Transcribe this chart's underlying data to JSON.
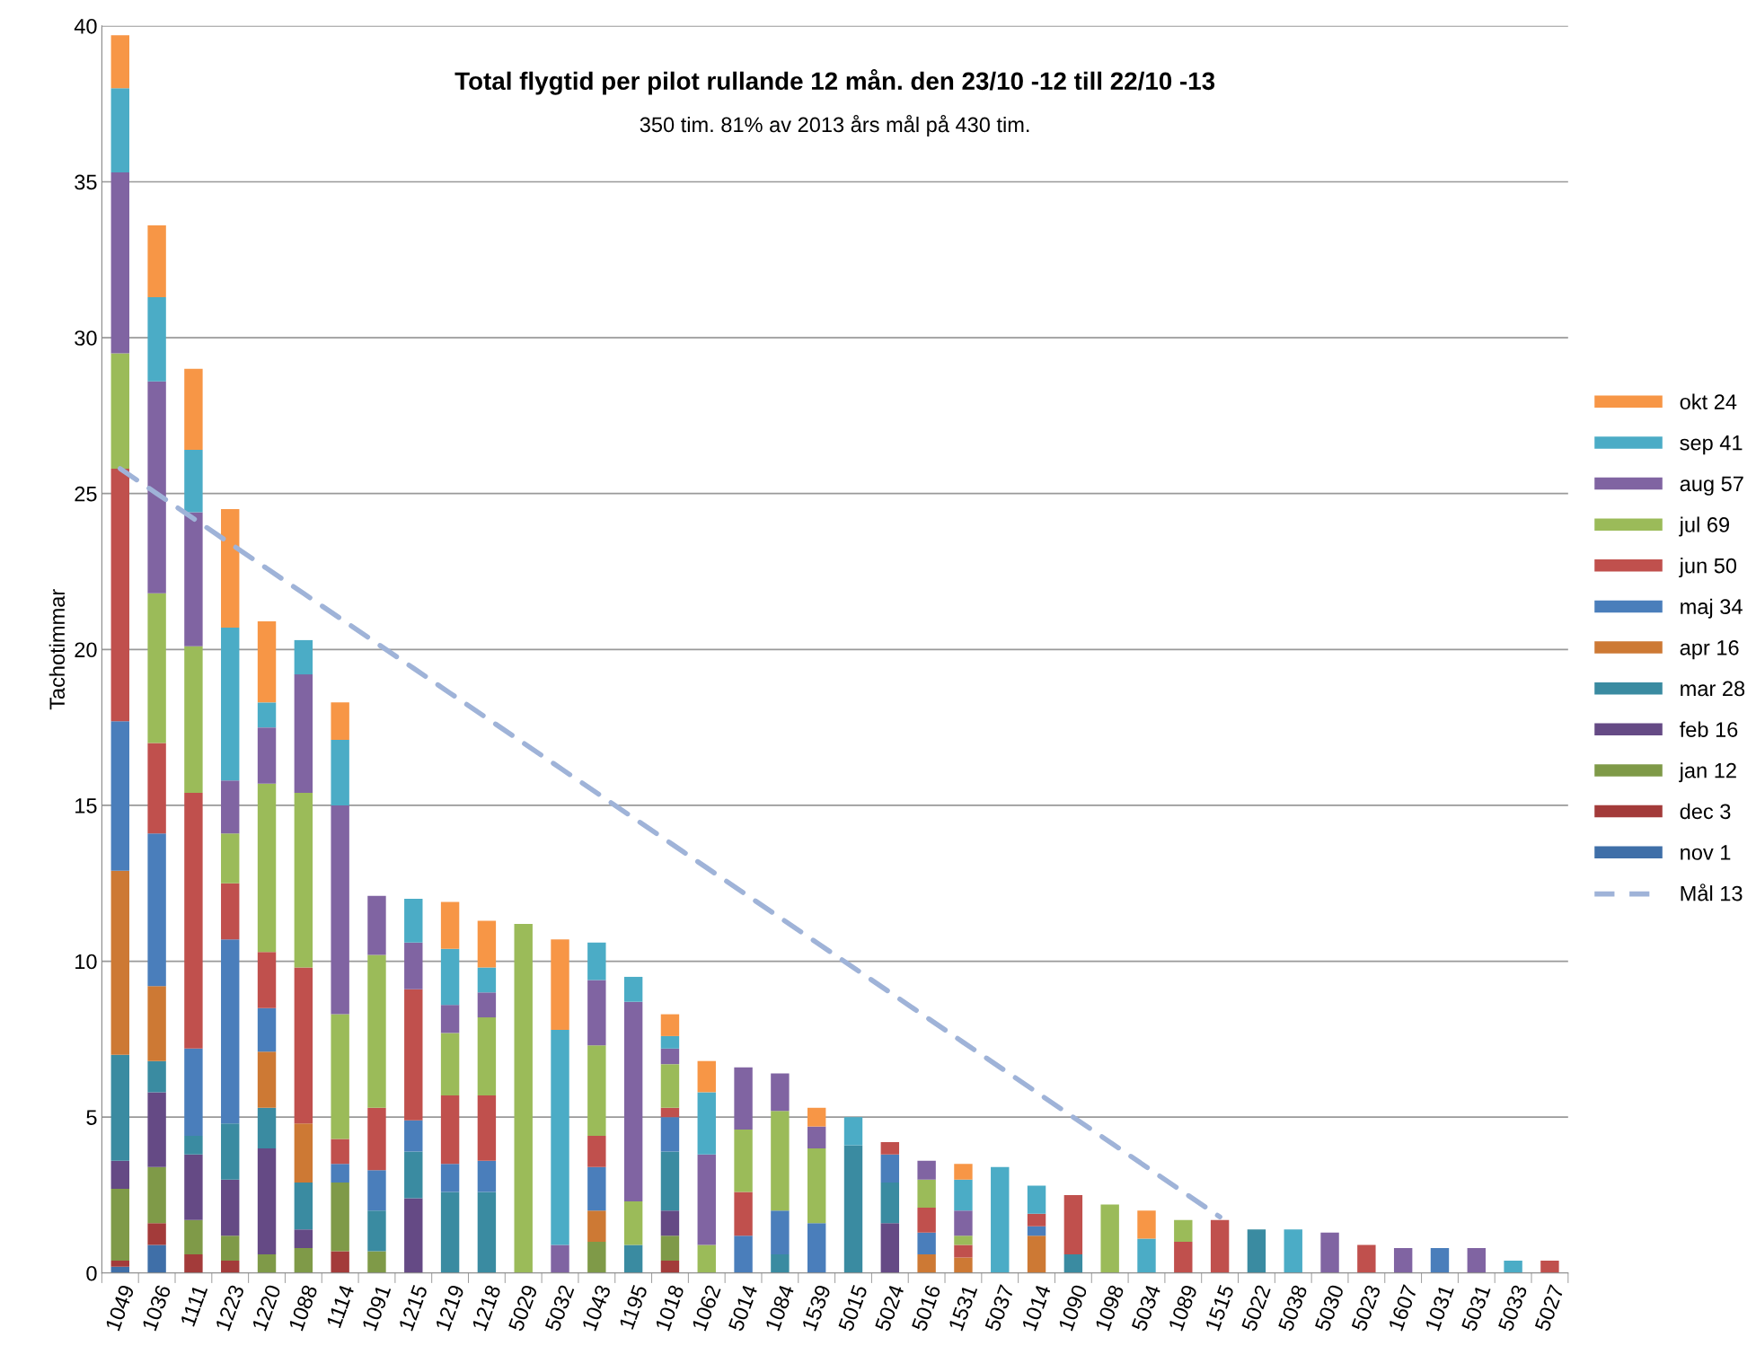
{
  "chart_data": {
    "type": "bar",
    "stacked": true,
    "title": "Total flygtid per pilot rullande 12 mån. den 23/10 -12 till 22/10 -13",
    "subtitle": "350 tim. 81% av 2013 års mål på 430 tim.",
    "ylabel": "Tachotimmar",
    "categories": [
      "1049",
      "1036",
      "1111",
      "1223",
      "1220",
      "1088",
      "1114",
      "1091",
      "1215",
      "1219",
      "1218",
      "5029",
      "5032",
      "1043",
      "1195",
      "1018",
      "1062",
      "5014",
      "1084",
      "1539",
      "5015",
      "5024",
      "5016",
      "1531",
      "5037",
      "1014",
      "1090",
      "1098",
      "5034",
      "1089",
      "1515",
      "5022",
      "5038",
      "5030",
      "5023",
      "1607",
      "1031",
      "5031",
      "5033",
      "5027"
    ],
    "ylim": [
      0,
      40
    ],
    "yticks": [
      0,
      5,
      10,
      15,
      20,
      25,
      30,
      35,
      40
    ],
    "grid": "y",
    "legend": "right",
    "series": [
      {
        "name": "nov 1",
        "color": "#3f6fa8",
        "values": [
          0.2,
          0.9,
          null,
          null,
          null,
          null,
          null,
          null,
          null,
          null,
          null,
          null,
          null,
          null,
          null,
          null,
          null,
          null,
          null,
          null,
          null,
          null,
          null,
          null,
          null,
          null,
          null,
          null,
          null,
          null,
          null,
          null,
          null,
          null,
          null,
          null,
          null,
          null,
          null,
          null
        ]
      },
      {
        "name": "dec 3",
        "color": "#a33b3a",
        "values": [
          0.2,
          0.7,
          0.6,
          0.4,
          null,
          null,
          0.7,
          null,
          null,
          null,
          null,
          null,
          null,
          null,
          null,
          0.4,
          null,
          null,
          null,
          null,
          null,
          null,
          null,
          null,
          null,
          null,
          null,
          null,
          null,
          null,
          null,
          null,
          null,
          null,
          null,
          null,
          null,
          null,
          null,
          null
        ]
      },
      {
        "name": "jan 12",
        "color": "#7f9a48",
        "values": [
          2.3,
          1.8,
          1.1,
          0.8,
          0.6,
          0.8,
          2.2,
          0.7,
          null,
          null,
          null,
          null,
          null,
          1.0,
          null,
          0.8,
          null,
          null,
          null,
          null,
          null,
          null,
          null,
          null,
          null,
          null,
          null,
          null,
          null,
          null,
          null,
          null,
          null,
          null,
          null,
          null,
          null,
          null,
          null,
          null
        ]
      },
      {
        "name": "feb 16",
        "color": "#654a85",
        "values": [
          0.9,
          2.4,
          2.1,
          1.8,
          3.4,
          0.6,
          null,
          null,
          2.4,
          null,
          null,
          null,
          null,
          null,
          null,
          0.8,
          null,
          null,
          null,
          null,
          null,
          1.6,
          null,
          null,
          null,
          null,
          null,
          null,
          null,
          null,
          null,
          null,
          null,
          null,
          null,
          null,
          null,
          null,
          null,
          null
        ]
      },
      {
        "name": "mar 28",
        "color": "#3a8ba1",
        "values": [
          3.4,
          1.0,
          0.6,
          1.8,
          1.3,
          1.5,
          null,
          1.3,
          1.5,
          2.6,
          2.6,
          null,
          null,
          null,
          0.9,
          1.9,
          null,
          null,
          0.6,
          null,
          4.1,
          1.3,
          null,
          null,
          null,
          null,
          0.6,
          null,
          null,
          null,
          null,
          1.4,
          null,
          null,
          null,
          null,
          null,
          null,
          null,
          null
        ]
      },
      {
        "name": "apr 16",
        "color": "#cd7934",
        "values": [
          5.9,
          2.4,
          null,
          null,
          1.8,
          1.9,
          null,
          null,
          null,
          null,
          null,
          null,
          null,
          1.0,
          null,
          null,
          null,
          null,
          null,
          null,
          null,
          null,
          0.6,
          0.5,
          null,
          1.2,
          null,
          null,
          null,
          null,
          null,
          null,
          null,
          null,
          null,
          null,
          null,
          null,
          null,
          null
        ]
      },
      {
        "name": "maj 34",
        "color": "#4a7ebb",
        "values": [
          4.8,
          4.9,
          2.8,
          5.9,
          1.4,
          null,
          0.6,
          1.3,
          1.0,
          0.9,
          1.0,
          null,
          null,
          1.4,
          null,
          1.1,
          null,
          1.2,
          1.4,
          1.6,
          null,
          0.9,
          0.7,
          null,
          null,
          0.3,
          null,
          null,
          null,
          null,
          null,
          null,
          null,
          null,
          null,
          null,
          0.8,
          null,
          null,
          null
        ]
      },
      {
        "name": "jun 50",
        "color": "#c0504d",
        "values": [
          8.1,
          2.9,
          8.2,
          1.8,
          1.8,
          5.0,
          0.8,
          2.0,
          4.2,
          2.2,
          2.1,
          null,
          null,
          1.0,
          null,
          0.3,
          null,
          1.4,
          null,
          null,
          null,
          0.4,
          0.8,
          0.4,
          null,
          0.4,
          1.9,
          null,
          null,
          1.0,
          1.7,
          null,
          null,
          null,
          0.9,
          null,
          null,
          null,
          null,
          0.4
        ]
      },
      {
        "name": "jul 69",
        "color": "#9bbb59",
        "values": [
          3.7,
          4.8,
          4.7,
          1.6,
          5.4,
          5.6,
          4.0,
          4.9,
          null,
          2.0,
          2.5,
          11.2,
          null,
          2.9,
          1.4,
          1.4,
          0.9,
          2.0,
          3.2,
          2.4,
          null,
          null,
          0.9,
          0.3,
          null,
          null,
          null,
          2.2,
          null,
          0.7,
          null,
          null,
          null,
          null,
          null,
          null,
          null,
          null,
          null,
          null
        ]
      },
      {
        "name": "aug 57",
        "color": "#8064a2",
        "values": [
          5.8,
          6.8,
          4.3,
          1.7,
          1.8,
          3.8,
          6.7,
          1.9,
          1.5,
          0.9,
          0.8,
          null,
          0.9,
          2.1,
          6.4,
          0.5,
          2.9,
          2.0,
          1.2,
          0.7,
          null,
          null,
          0.6,
          0.8,
          null,
          null,
          null,
          null,
          null,
          null,
          null,
          null,
          null,
          1.3,
          null,
          0.8,
          null,
          0.8,
          null,
          null
        ]
      },
      {
        "name": "sep 41",
        "color": "#4bacc6",
        "values": [
          2.7,
          2.7,
          2.0,
          4.9,
          0.8,
          1.1,
          2.1,
          null,
          1.4,
          1.8,
          0.8,
          null,
          6.9,
          1.2,
          0.8,
          0.4,
          2.0,
          null,
          null,
          null,
          0.9,
          null,
          null,
          1.0,
          3.4,
          0.9,
          null,
          null,
          1.1,
          null,
          null,
          null,
          1.4,
          null,
          null,
          null,
          null,
          null,
          0.4,
          null
        ]
      },
      {
        "name": "okt 24",
        "color": "#f79646",
        "values": [
          1.7,
          2.3,
          2.6,
          3.8,
          2.6,
          null,
          1.2,
          null,
          null,
          1.5,
          1.5,
          null,
          2.9,
          null,
          null,
          0.7,
          1.0,
          null,
          null,
          0.6,
          null,
          null,
          null,
          0.5,
          null,
          null,
          null,
          null,
          0.9,
          null,
          null,
          null,
          null,
          null,
          null,
          null,
          null,
          null,
          null,
          null
        ]
      },
      {
        "name": "Mål 13",
        "type": "line",
        "line_style": "dashed",
        "color": "#9fb3d8",
        "values": [
          25.8,
          25.0,
          24.2,
          23.4,
          22.6,
          21.8,
          21.0,
          20.2,
          19.4,
          18.6,
          17.8,
          17.0,
          16.2,
          15.4,
          14.6,
          13.8,
          13.0,
          12.2,
          11.4,
          10.6,
          9.8,
          9.0,
          8.2,
          7.4,
          6.6,
          5.8,
          5.0,
          4.2,
          3.4,
          2.6,
          1.8,
          null,
          null,
          null,
          null,
          null,
          null,
          null,
          null,
          null
        ]
      }
    ]
  }
}
